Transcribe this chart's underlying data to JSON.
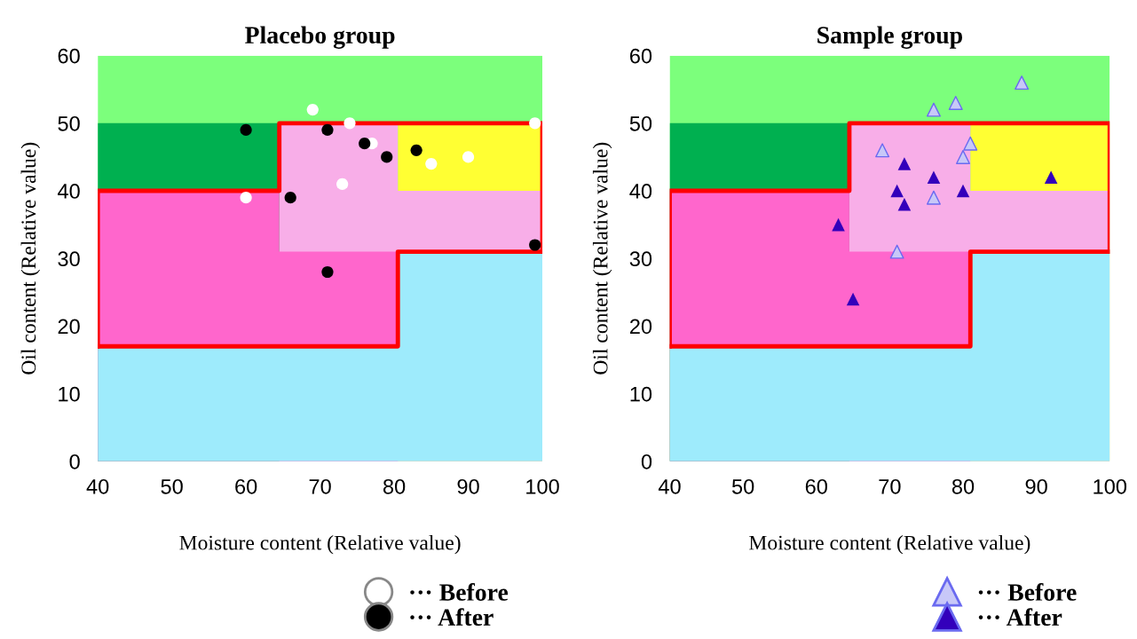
{
  "chart_data": [
    {
      "type": "scatter",
      "title": "Placebo group",
      "xlabel": "Moisture content (Relative value)",
      "ylabel": "Oil content (Relative value)",
      "xlim": [
        40,
        100
      ],
      "ylim": [
        0,
        60
      ],
      "xticks": [
        40,
        50,
        60,
        70,
        80,
        90,
        100
      ],
      "yticks": [
        0,
        10,
        20,
        30,
        40,
        50,
        60
      ],
      "grid": false,
      "legend": "bottom",
      "series": [
        {
          "type": "area",
          "color": "#7cff7c",
          "x": [
            40,
            100
          ],
          "values": [
            60,
            60
          ]
        },
        {
          "type": "area",
          "color": "#00b050",
          "x": [
            40,
            64.5
          ],
          "values": [
            50,
            50
          ]
        },
        {
          "type": "area",
          "color": "#ffff33",
          "x": [
            80.5,
            100
          ],
          "values": [
            50,
            50
          ]
        },
        {
          "type": "area",
          "color": "#f8aee8",
          "x": [
            64.5,
            80.5,
            80.5,
            100
          ],
          "values": [
            50,
            50,
            40,
            40
          ]
        },
        {
          "type": "area",
          "color": "#ff66cc",
          "x": [
            40,
            64.5,
            64.5,
            80.5
          ],
          "values": [
            40,
            40,
            31,
            31
          ]
        },
        {
          "type": "area",
          "color": "#9eebfc",
          "x": [
            40,
            80.5,
            80.5,
            100
          ],
          "values": [
            17,
            17,
            31,
            31
          ]
        },
        {
          "type": "line",
          "color": "#ff0000",
          "x": [
            40,
            40,
            64.5,
            64.5,
            100,
            100
          ],
          "values": [
            17,
            40,
            40,
            50,
            50,
            31
          ]
        },
        {
          "type": "line",
          "color": "#ff0000",
          "x": [
            40,
            80.5,
            80.5,
            100
          ],
          "values": [
            17,
            17,
            31,
            31
          ]
        },
        {
          "type": "scatter",
          "name": "··· Before",
          "color": "#ffffff",
          "marker": "circle",
          "x": [
            69,
            74,
            77,
            73,
            85,
            90,
            99,
            60
          ],
          "values": [
            52,
            50,
            47,
            41,
            44,
            45,
            50,
            39
          ]
        },
        {
          "type": "scatter",
          "name": "··· After",
          "color": "#000000",
          "marker": "circle",
          "x": [
            60,
            71,
            76,
            79,
            83,
            66,
            71,
            99
          ],
          "values": [
            49,
            49,
            47,
            45,
            46,
            39,
            28,
            32
          ]
        }
      ]
    },
    {
      "type": "scatter",
      "title": "Sample group",
      "xlabel": "Moisture content (Relative value)",
      "ylabel": "Oil content (Relative value)",
      "xlim": [
        40,
        100
      ],
      "ylim": [
        0,
        60
      ],
      "xticks": [
        40,
        50,
        60,
        70,
        80,
        90,
        100
      ],
      "yticks": [
        0,
        10,
        20,
        30,
        40,
        50,
        60
      ],
      "grid": false,
      "legend": "bottom",
      "series": [
        {
          "type": "area",
          "color": "#7cff7c",
          "x": [
            40,
            100
          ],
          "values": [
            60,
            60
          ]
        },
        {
          "type": "area",
          "color": "#00b050",
          "x": [
            40,
            64.5
          ],
          "values": [
            50,
            50
          ]
        },
        {
          "type": "area",
          "color": "#ffff33",
          "x": [
            81,
            100
          ],
          "values": [
            50,
            50
          ]
        },
        {
          "type": "area",
          "color": "#f8aee8",
          "x": [
            64.5,
            81,
            81,
            100
          ],
          "values": [
            50,
            50,
            40,
            40
          ]
        },
        {
          "type": "area",
          "color": "#ff66cc",
          "x": [
            40,
            64.5,
            64.5,
            81
          ],
          "values": [
            40,
            40,
            31,
            31
          ]
        },
        {
          "type": "area",
          "color": "#9eebfc",
          "x": [
            40,
            81,
            81,
            100
          ],
          "values": [
            17,
            17,
            31,
            31
          ]
        },
        {
          "type": "line",
          "color": "#ff0000",
          "x": [
            40,
            40,
            64.5,
            64.5,
            100,
            100
          ],
          "values": [
            17,
            40,
            40,
            50,
            50,
            31
          ]
        },
        {
          "type": "line",
          "color": "#ff0000",
          "x": [
            40,
            81,
            81,
            100
          ],
          "values": [
            17,
            17,
            31,
            31
          ]
        },
        {
          "type": "scatter",
          "name": "··· Before",
          "color": "#c8c8f8",
          "marker": "triangle",
          "x": [
            88,
            79,
            76,
            69,
            81,
            80,
            76,
            71
          ],
          "values": [
            56,
            53,
            52,
            46,
            47,
            45,
            39,
            31
          ]
        },
        {
          "type": "scatter",
          "name": "··· After",
          "color": "#3300bb",
          "marker": "triangle",
          "x": [
            72,
            76,
            71,
            80,
            72,
            63,
            65,
            92
          ],
          "values": [
            44,
            42,
            40,
            40,
            38,
            35,
            24,
            42
          ]
        }
      ]
    }
  ]
}
